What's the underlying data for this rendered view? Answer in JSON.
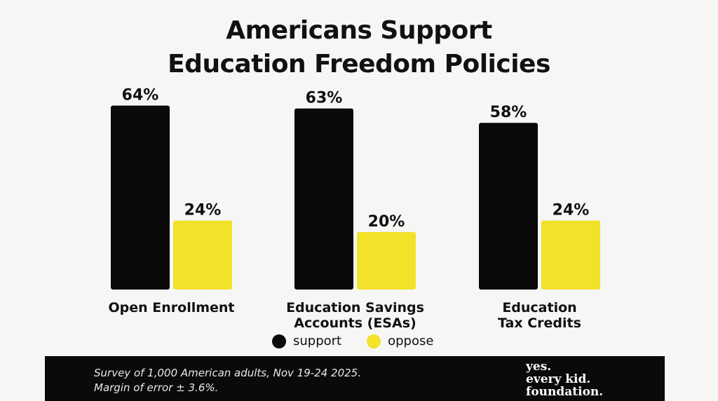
{
  "title": {
    "line1": "Americans Support",
    "line2": "Education Freedom Policies"
  },
  "colors": {
    "support": "#0a0a0a",
    "oppose": "#f2e22a",
    "background": "#f6f6f4"
  },
  "chart_data": {
    "type": "bar",
    "title": "Americans Support Education Freedom Policies",
    "xlabel": "",
    "ylabel": "",
    "ylim": [
      0,
      70
    ],
    "grid": false,
    "legend_position": "bottom",
    "categories": [
      [
        "Open Enrollment"
      ],
      [
        "Education Savings",
        "Accounts (ESAs)"
      ],
      [
        "Education",
        "Tax Credits"
      ]
    ],
    "series": [
      {
        "name": "support",
        "values": [
          64,
          63,
          58
        ],
        "labels": [
          "64%",
          "63%",
          "58%"
        ]
      },
      {
        "name": "oppose",
        "values": [
          24,
          20,
          24
        ],
        "labels": [
          "24%",
          "20%",
          "24%"
        ]
      }
    ]
  },
  "legend": {
    "support_label": "support",
    "oppose_label": "oppose"
  },
  "footer": {
    "note_line1": "Survey of 1,000 American adults, Nov 19-24 2025.",
    "note_line2": "Margin of error ± 3.6%.",
    "logo_line1": "yes.",
    "logo_line2": "every kid.",
    "logo_line3": "foundation."
  }
}
